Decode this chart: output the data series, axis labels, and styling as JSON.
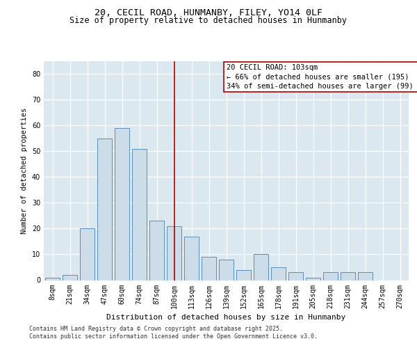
{
  "title1": "20, CECIL ROAD, HUNMANBY, FILEY, YO14 0LF",
  "title2": "Size of property relative to detached houses in Hunmanby",
  "xlabel": "Distribution of detached houses by size in Hunmanby",
  "ylabel": "Number of detached properties",
  "categories": [
    "8sqm",
    "21sqm",
    "34sqm",
    "47sqm",
    "60sqm",
    "74sqm",
    "87sqm",
    "100sqm",
    "113sqm",
    "126sqm",
    "139sqm",
    "152sqm",
    "165sqm",
    "178sqm",
    "191sqm",
    "205sqm",
    "218sqm",
    "231sqm",
    "244sqm",
    "257sqm",
    "270sqm"
  ],
  "values": [
    1,
    2,
    20,
    55,
    59,
    51,
    23,
    21,
    17,
    9,
    8,
    4,
    10,
    5,
    3,
    1,
    3,
    3,
    3,
    0,
    0
  ],
  "bar_color": "#ccdce8",
  "bar_edge_color": "#5b8db8",
  "background_color": "#dce8f0",
  "vline_x_idx": 7,
  "vline_color": "#aa0000",
  "annotation_text": "20 CECIL ROAD: 103sqm\n← 66% of detached houses are smaller (195)\n34% of semi-detached houses are larger (99) →",
  "annotation_box_facecolor": "#ffffff",
  "annotation_box_edgecolor": "#aa0000",
  "ylim": [
    0,
    85
  ],
  "yticks": [
    0,
    10,
    20,
    30,
    40,
    50,
    60,
    70,
    80
  ],
  "footer": "Contains HM Land Registry data © Crown copyright and database right 2025.\nContains public sector information licensed under the Open Government Licence v3.0.",
  "title1_fontsize": 9.5,
  "title2_fontsize": 8.5,
  "xlabel_fontsize": 8,
  "ylabel_fontsize": 7.5,
  "tick_fontsize": 7,
  "annotation_fontsize": 7.5,
  "footer_fontsize": 6
}
